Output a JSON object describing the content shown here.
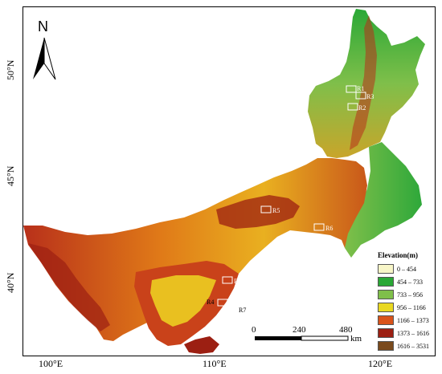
{
  "north_arrow": {
    "label": "N"
  },
  "axes": {
    "lat_labels": [
      "50°N",
      "45°N",
      "40°N"
    ],
    "lon_labels": [
      "100°E",
      "110°E",
      "120°E"
    ]
  },
  "regions": [
    "R1",
    "R2",
    "R3",
    "R4",
    "R5",
    "R6",
    "R7",
    "R8"
  ],
  "legend": {
    "title": "Elevation(m)",
    "items": [
      {
        "label": "0 – 454",
        "color": "#f8f6c8"
      },
      {
        "label": "454 – 733",
        "color": "#2aa836"
      },
      {
        "label": "733 – 956",
        "color": "#7fbf4a"
      },
      {
        "label": "956 – 1166",
        "color": "#e9d821"
      },
      {
        "label": "1166 – 1373",
        "color": "#d9531a"
      },
      {
        "label": "1373 – 1616",
        "color": "#9c1f12"
      },
      {
        "label": "1616 – 3531",
        "color": "#7a4a1c"
      }
    ]
  },
  "scale_bar": {
    "ticks": [
      "0",
      "240",
      "480"
    ],
    "unit": "km"
  }
}
